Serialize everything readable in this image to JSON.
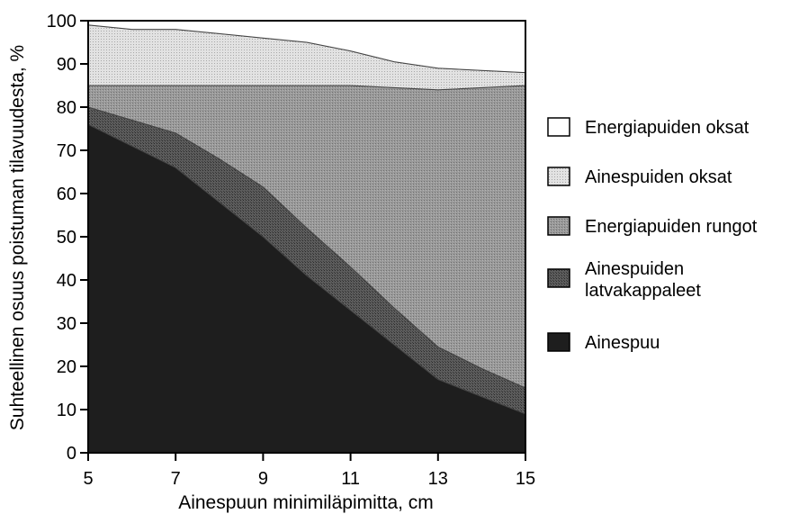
{
  "chart_data": {
    "type": "area",
    "stacked": true,
    "ylabel": "Suhteellinen osuus poistuman tilavuudesta, %",
    "xlabel": "Ainespuun minimiläpimitta, cm",
    "xlim": [
      5,
      15
    ],
    "ylim": [
      0,
      100
    ],
    "x_ticks": [
      5,
      7,
      9,
      11,
      13,
      15
    ],
    "y_ticks": [
      0,
      10,
      20,
      30,
      40,
      50,
      60,
      70,
      80,
      90,
      100
    ],
    "grid": false,
    "legend_position": "right",
    "x": [
      5,
      6,
      7,
      8,
      9,
      10,
      11,
      12,
      13,
      14,
      15
    ],
    "series": [
      {
        "name": "Ainespuu",
        "color": "#1e1e1e",
        "values": [
          76,
          71,
          66,
          58,
          50,
          41,
          33,
          25,
          17,
          13,
          9
        ]
      },
      {
        "name": "Ainespuiden latvakappaleet",
        "color": "#4a4a4a",
        "values": [
          4,
          6,
          8,
          10,
          11.5,
          11,
          10,
          8.5,
          7.5,
          6.5,
          6
        ]
      },
      {
        "name": "Energiapuiden rungot",
        "color": "#8c8c8c",
        "values": [
          5,
          8,
          11,
          17,
          23.5,
          33,
          42,
          51,
          59.5,
          65,
          70
        ]
      },
      {
        "name": "Ainespuiden oksat",
        "color": "#d4d4d4",
        "values": [
          14,
          13,
          13,
          12,
          11,
          10,
          8,
          6,
          5,
          4,
          3
        ]
      },
      {
        "name": "Energiapuiden oksat",
        "color": "#ffffff",
        "values": [
          1,
          2,
          2,
          3,
          4,
          5,
          7,
          9.5,
          11,
          11.5,
          12
        ]
      }
    ],
    "legend_order": [
      "Energiapuiden oksat",
      "Ainespuiden oksat",
      "Energiapuiden rungot",
      "Ainespuiden latvakappaleet",
      "Ainespuu"
    ]
  }
}
